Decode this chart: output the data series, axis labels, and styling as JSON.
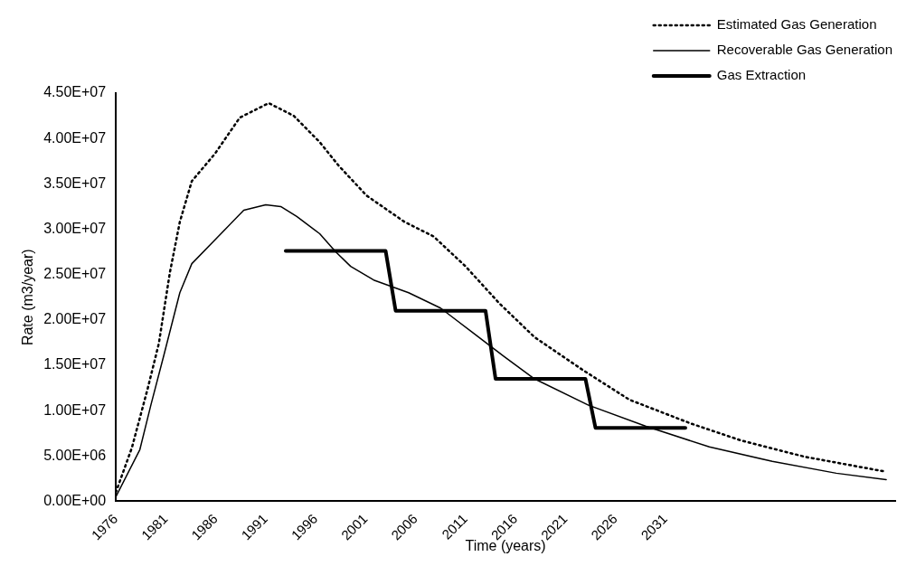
{
  "chart_data": {
    "type": "line",
    "xlabel": "Time (years)",
    "ylabel": "Rate (m3/year)",
    "xlim": [
      1976,
      2054
    ],
    "xticks": [
      1976,
      1981,
      1986,
      1991,
      1996,
      2001,
      2006,
      2011,
      2016,
      2021,
      2026,
      2031
    ],
    "ylim": [
      0,
      45000000
    ],
    "yticks": [
      {
        "value": 0,
        "label": "0.00E+00"
      },
      {
        "value": 5000000,
        "label": "5.00E+06"
      },
      {
        "value": 10000000,
        "label": "1.00E+07"
      },
      {
        "value": 15000000,
        "label": "1.50E+07"
      },
      {
        "value": 20000000,
        "label": "2.00E+07"
      },
      {
        "value": 25000000,
        "label": "2.50E+07"
      },
      {
        "value": 30000000,
        "label": "3.00E+07"
      },
      {
        "value": 35000000,
        "label": "3.50E+07"
      },
      {
        "value": 40000000,
        "label": "4.00E+07"
      },
      {
        "value": 45000000,
        "label": "4.50E+07"
      }
    ],
    "grid": false,
    "legend": "top right",
    "marker": "none",
    "series": [
      {
        "name": "Estimated Gas Generation",
        "color": "#000000",
        "line_style": "dotted",
        "x": [
          1976,
          1977.6,
          1979.2,
          1980.3,
          1981.4,
          1982.4,
          1983.6,
          1985.9,
          1988.4,
          1991.3,
          1993.8,
          1996.4,
          1998.3,
          2001.1,
          2004.9,
          2007.8,
          2011,
          2014.4,
          2017.9,
          2022.7,
          2027.4,
          2033.5,
          2038.6,
          2045,
          2052.9
        ],
        "values": [
          1000000,
          5900000,
          12500000,
          17400000,
          25200000,
          30800000,
          35300000,
          38300000,
          42300000,
          43900000,
          42500000,
          39600000,
          37000000,
          33700000,
          30800000,
          29200000,
          25900000,
          21800000,
          18100000,
          14500000,
          11200000,
          8600000,
          6700000,
          4900000,
          3300000
        ]
      },
      {
        "name": "Recoverable Gas Generation",
        "color": "#000000",
        "line_style": "solid",
        "x": [
          1976,
          1978.4,
          1979.5,
          1980.8,
          1982.4,
          1983.6,
          1985.9,
          1988.8,
          1991,
          1992.5,
          1994.1,
          1996.4,
          1998,
          1999.5,
          2001.8,
          2005.3,
          2008.5,
          2011.6,
          2014.8,
          2017.9,
          2023.3,
          2029,
          2035.4,
          2041.7,
          2048.1,
          2053.1
        ],
        "values": [
          500000,
          5700000,
          10600000,
          16100000,
          23000000,
          26200000,
          28800000,
          32100000,
          32700000,
          32500000,
          31400000,
          29500000,
          27500000,
          25900000,
          24400000,
          23000000,
          21300000,
          18700000,
          16000000,
          13500000,
          10600000,
          8300000,
          6000000,
          4400000,
          3100000,
          2400000
        ]
      },
      {
        "name": "Gas Extraction",
        "color": "#000000",
        "line_style": "solid",
        "x": [
          1993,
          2003,
          2004,
          2013,
          2014,
          2023,
          2024,
          2033
        ],
        "values": [
          27600000,
          27600000,
          21000000,
          21000000,
          13500000,
          13500000,
          8100000,
          8100000
        ]
      }
    ]
  }
}
